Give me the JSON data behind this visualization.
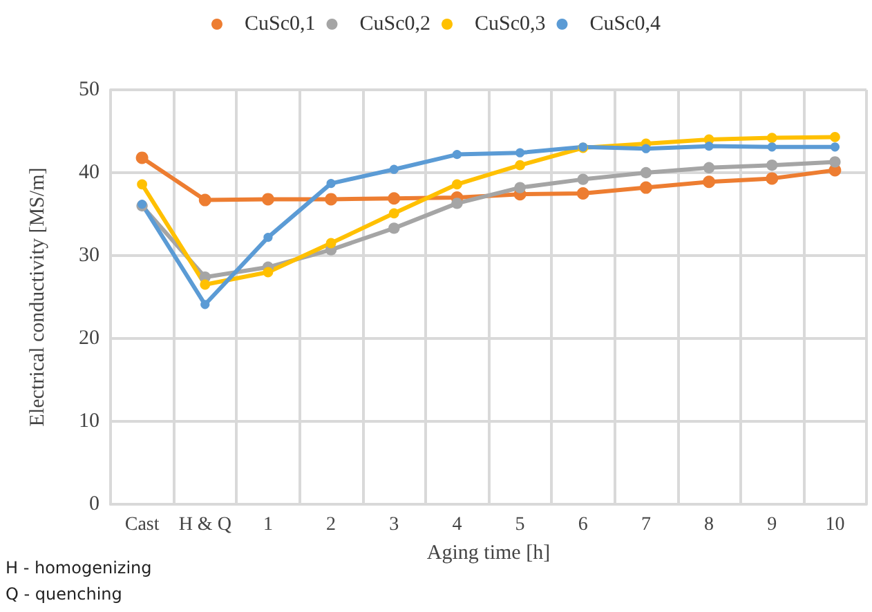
{
  "chart_data": {
    "type": "line",
    "xlabel": "Aging time [h]",
    "ylabel": "Electrical conductivity [MS/m]",
    "categories": [
      "Cast",
      "H & Q",
      "1",
      "2",
      "3",
      "4",
      "5",
      "6",
      "7",
      "8",
      "9",
      "10"
    ],
    "series": [
      {
        "name": "CuSc0,1",
        "color": "#ed7d31",
        "values": [
          41.8,
          36.7,
          36.8,
          36.8,
          36.9,
          37.0,
          37.4,
          37.5,
          38.2,
          38.9,
          39.3,
          40.3
        ]
      },
      {
        "name": "CuSc0,2",
        "color": "#a5a5a5",
        "values": [
          36.0,
          27.4,
          28.6,
          30.7,
          33.3,
          36.3,
          38.2,
          39.2,
          40.0,
          40.6,
          40.9,
          41.3
        ]
      },
      {
        "name": "CuSc0,3",
        "color": "#ffc000",
        "values": [
          38.6,
          26.5,
          28.0,
          31.5,
          35.1,
          38.6,
          40.9,
          43.0,
          43.5,
          44.0,
          44.2,
          44.3
        ]
      },
      {
        "name": "CuSc0,4",
        "color": "#5b9bd5",
        "values": [
          36.2,
          24.1,
          32.2,
          38.7,
          40.4,
          42.2,
          42.4,
          43.1,
          42.9,
          43.2,
          43.1,
          43.1
        ]
      }
    ],
    "ylim": [
      0,
      50
    ],
    "yticks": [
      0,
      10,
      20,
      30,
      40,
      50
    ],
    "grid": true,
    "legend": "top",
    "marker": "circle",
    "line_style": "solid",
    "annotations": [
      "H - homogenizing",
      "Q - quenching"
    ]
  }
}
